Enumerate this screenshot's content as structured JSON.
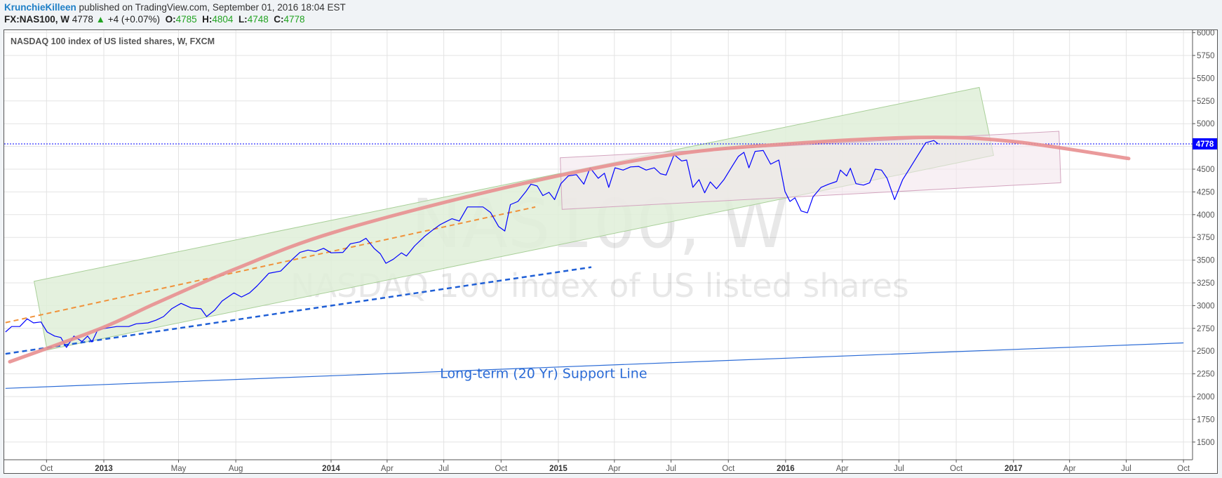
{
  "header": {
    "author": "KrunchieKilleen",
    "published": "published on TradingView.com, September 01, 2016 18:04 EST",
    "symbol": "FX:NAS100, W",
    "last": "4778",
    "change": "+4 (+0.07%)",
    "o_label": "O:",
    "o": "4785",
    "h_label": "H:",
    "h": "4804",
    "l_label": "L:",
    "l": "4748",
    "c_label": "C:",
    "c": "4778"
  },
  "pane_title": "NASDAQ 100 index of US listed shares, W, FXCM",
  "watermark": {
    "symbol": "NAS100, W",
    "description": "NASDAQ 100 index of US listed shares"
  },
  "colors": {
    "price": "#0000ff",
    "up": "#22a322",
    "last_price_label": "#0000ff",
    "curve": "#e88f90",
    "channel_fill": "#dfeed8",
    "box_fill": "#f4e6ec",
    "blue_dashed": "#1f5fd6",
    "orange_dashed": "#f0923a",
    "support": "#2b6bd6"
  },
  "chart_data": {
    "type": "line",
    "ylim": [
      1250,
      6000
    ],
    "y_ticks": [
      6000,
      5750,
      5500,
      5250,
      5000,
      4750,
      4500,
      4250,
      4000,
      3750,
      3500,
      3250,
      3000,
      2750,
      2500,
      2250,
      2000,
      1750,
      1500
    ],
    "x_ticks": [
      {
        "date": "2012-10-01",
        "label": "Oct",
        "major": false
      },
      {
        "date": "2013-01-01",
        "label": "2013",
        "major": true
      },
      {
        "date": "2013-05-01",
        "label": "May",
        "major": false
      },
      {
        "date": "2013-08-01",
        "label": "Aug",
        "major": false
      },
      {
        "date": "2014-01-01",
        "label": "2014",
        "major": true
      },
      {
        "date": "2014-04-01",
        "label": "Apr",
        "major": false
      },
      {
        "date": "2014-07-01",
        "label": "Jul",
        "major": false
      },
      {
        "date": "2014-10-01",
        "label": "Oct",
        "major": false
      },
      {
        "date": "2015-01-01",
        "label": "2015",
        "major": true
      },
      {
        "date": "2015-04-01",
        "label": "Apr",
        "major": false
      },
      {
        "date": "2015-07-01",
        "label": "Jul",
        "major": false
      },
      {
        "date": "2015-10-01",
        "label": "Oct",
        "major": false
      },
      {
        "date": "2016-01-01",
        "label": "2016",
        "major": true
      },
      {
        "date": "2016-04-01",
        "label": "Apr",
        "major": false
      },
      {
        "date": "2016-07-01",
        "label": "Jul",
        "major": false
      },
      {
        "date": "2016-10-01",
        "label": "Oct",
        "major": false
      },
      {
        "date": "2017-01-01",
        "label": "2017",
        "major": true
      },
      {
        "date": "2017-04-01",
        "label": "Apr",
        "major": false
      },
      {
        "date": "2017-07-01",
        "label": "Jul",
        "major": false
      },
      {
        "date": "2017-10-01",
        "label": "Oct",
        "major": false
      }
    ],
    "grid": true,
    "last_price": 4778,
    "series": [
      {
        "points": [
          [
            "2012-07-27",
            2710
          ],
          [
            "2012-08-06",
            2770
          ],
          [
            "2012-08-19",
            2770
          ],
          [
            "2012-08-31",
            2855
          ],
          [
            "2012-09-10",
            2810
          ],
          [
            "2012-09-22",
            2820
          ],
          [
            "2012-10-02",
            2710
          ],
          [
            "2012-10-14",
            2665
          ],
          [
            "2012-10-24",
            2650
          ],
          [
            "2012-11-02",
            2540
          ],
          [
            "2012-11-14",
            2665
          ],
          [
            "2012-11-27",
            2605
          ],
          [
            "2012-12-06",
            2665
          ],
          [
            "2012-12-13",
            2600
          ],
          [
            "2012-12-22",
            2730
          ],
          [
            "2013-01-03",
            2750
          ],
          [
            "2013-01-22",
            2770
          ],
          [
            "2013-02-10",
            2770
          ],
          [
            "2013-02-22",
            2800
          ],
          [
            "2013-03-13",
            2810
          ],
          [
            "2013-03-26",
            2840
          ],
          [
            "2013-04-07",
            2880
          ],
          [
            "2013-04-20",
            2965
          ],
          [
            "2013-05-05",
            3025
          ],
          [
            "2013-05-21",
            2975
          ],
          [
            "2013-06-06",
            2965
          ],
          [
            "2013-06-15",
            2880
          ],
          [
            "2013-06-28",
            2950
          ],
          [
            "2013-07-10",
            3050
          ],
          [
            "2013-07-29",
            3140
          ],
          [
            "2013-08-10",
            3095
          ],
          [
            "2013-08-23",
            3140
          ],
          [
            "2013-09-04",
            3215
          ],
          [
            "2013-09-23",
            3355
          ],
          [
            "2013-10-12",
            3380
          ],
          [
            "2013-10-31",
            3510
          ],
          [
            "2013-11-12",
            3585
          ],
          [
            "2013-11-25",
            3610
          ],
          [
            "2013-12-07",
            3595
          ],
          [
            "2013-12-20",
            3630
          ],
          [
            "2014-01-01",
            3580
          ],
          [
            "2014-01-20",
            3585
          ],
          [
            "2014-02-01",
            3680
          ],
          [
            "2014-02-16",
            3700
          ],
          [
            "2014-02-26",
            3740
          ],
          [
            "2014-03-11",
            3630
          ],
          [
            "2014-03-21",
            3570
          ],
          [
            "2014-03-30",
            3465
          ],
          [
            "2014-04-11",
            3510
          ],
          [
            "2014-04-24",
            3580
          ],
          [
            "2014-05-02",
            3545
          ],
          [
            "2014-05-15",
            3655
          ],
          [
            "2014-05-31",
            3760
          ],
          [
            "2014-06-13",
            3830
          ],
          [
            "2014-06-25",
            3890
          ],
          [
            "2014-07-14",
            3955
          ],
          [
            "2014-07-26",
            3930
          ],
          [
            "2014-08-08",
            4085
          ],
          [
            "2014-09-02",
            4085
          ],
          [
            "2014-09-14",
            4025
          ],
          [
            "2014-09-27",
            3870
          ],
          [
            "2014-10-07",
            3820
          ],
          [
            "2014-10-16",
            4110
          ],
          [
            "2014-10-28",
            4145
          ],
          [
            "2014-11-10",
            4255
          ],
          [
            "2014-11-18",
            4335
          ],
          [
            "2014-11-28",
            4315
          ],
          [
            "2014-12-07",
            4210
          ],
          [
            "2014-12-17",
            4245
          ],
          [
            "2014-12-26",
            4165
          ],
          [
            "2015-01-05",
            4340
          ],
          [
            "2015-01-17",
            4425
          ],
          [
            "2015-01-30",
            4440
          ],
          [
            "2015-02-11",
            4335
          ],
          [
            "2015-02-21",
            4515
          ],
          [
            "2015-03-06",
            4400
          ],
          [
            "2015-03-16",
            4455
          ],
          [
            "2015-03-23",
            4300
          ],
          [
            "2015-04-02",
            4515
          ],
          [
            "2015-04-15",
            4490
          ],
          [
            "2015-04-27",
            4525
          ],
          [
            "2015-05-10",
            4530
          ],
          [
            "2015-05-22",
            4490
          ],
          [
            "2015-06-04",
            4515
          ],
          [
            "2015-06-14",
            4450
          ],
          [
            "2015-06-23",
            4435
          ],
          [
            "2015-07-06",
            4660
          ],
          [
            "2015-07-18",
            4590
          ],
          [
            "2015-07-26",
            4600
          ],
          [
            "2015-08-05",
            4300
          ],
          [
            "2015-08-15",
            4385
          ],
          [
            "2015-08-24",
            4240
          ],
          [
            "2015-09-02",
            4360
          ],
          [
            "2015-09-12",
            4285
          ],
          [
            "2015-09-24",
            4385
          ],
          [
            "2015-10-07",
            4530
          ],
          [
            "2015-10-17",
            4640
          ],
          [
            "2015-10-26",
            4685
          ],
          [
            "2015-11-03",
            4515
          ],
          [
            "2015-11-13",
            4695
          ],
          [
            "2015-11-26",
            4705
          ],
          [
            "2015-12-08",
            4555
          ],
          [
            "2015-12-21",
            4600
          ],
          [
            "2015-12-31",
            4255
          ],
          [
            "2016-01-08",
            4145
          ],
          [
            "2016-01-16",
            4185
          ],
          [
            "2016-01-26",
            4040
          ],
          [
            "2016-02-05",
            4020
          ],
          [
            "2016-02-14",
            4195
          ],
          [
            "2016-02-27",
            4300
          ],
          [
            "2016-03-10",
            4335
          ],
          [
            "2016-03-23",
            4365
          ],
          [
            "2016-03-29",
            4490
          ],
          [
            "2016-04-08",
            4425
          ],
          [
            "2016-04-14",
            4510
          ],
          [
            "2016-04-23",
            4340
          ],
          [
            "2016-05-05",
            4325
          ],
          [
            "2016-05-15",
            4350
          ],
          [
            "2016-05-24",
            4500
          ],
          [
            "2016-06-03",
            4490
          ],
          [
            "2016-06-12",
            4400
          ],
          [
            "2016-06-24",
            4165
          ],
          [
            "2016-07-07",
            4385
          ],
          [
            "2016-07-19",
            4515
          ],
          [
            "2016-08-01",
            4660
          ],
          [
            "2016-08-13",
            4790
          ],
          [
            "2016-08-26",
            4815
          ],
          [
            "2016-09-02",
            4778
          ]
        ]
      }
    ],
    "drawings": {
      "channel": [
        [
          "2012-09-11",
          3268
        ],
        [
          "2016-11-07",
          5399
        ],
        [
          "2016-11-30",
          4651
        ],
        [
          "2012-10-02",
          2512
        ]
      ],
      "box": [
        [
          "2015-01-04",
          4625
        ],
        [
          "2017-03-15",
          4917
        ],
        [
          "2017-03-18",
          4350
        ],
        [
          "2015-01-07",
          4058
        ]
      ],
      "curve": [
        [
          "2012-08-03",
          2383
        ],
        [
          "2012-12-28",
          2752
        ],
        [
          "2013-03-26",
          3027
        ],
        [
          "2013-07-29",
          3397
        ],
        [
          "2014-01-07",
          3809
        ],
        [
          "2014-10-09",
          4299
        ],
        [
          "2015-06-16",
          4643
        ],
        [
          "2015-12-21",
          4771
        ],
        [
          "2016-08-01",
          4849
        ],
        [
          "2016-12-29",
          4806
        ],
        [
          "2017-07-05",
          4617
        ]
      ],
      "blue_dashed": [
        [
          "2012-07-27",
          2470
        ],
        [
          "2015-02-23",
          3423
        ]
      ],
      "orange_dashed": [
        [
          "2012-07-27",
          2813
        ],
        [
          "2014-11-25",
          4084
        ]
      ],
      "support_line": [
        [
          "2012-07-27",
          2090
        ],
        [
          "2017-10-01",
          2590
        ]
      ],
      "support_label": {
        "text": "Long-term (20 Yr) Support Line",
        "date": "2014-06-25",
        "value": 2250
      }
    }
  }
}
